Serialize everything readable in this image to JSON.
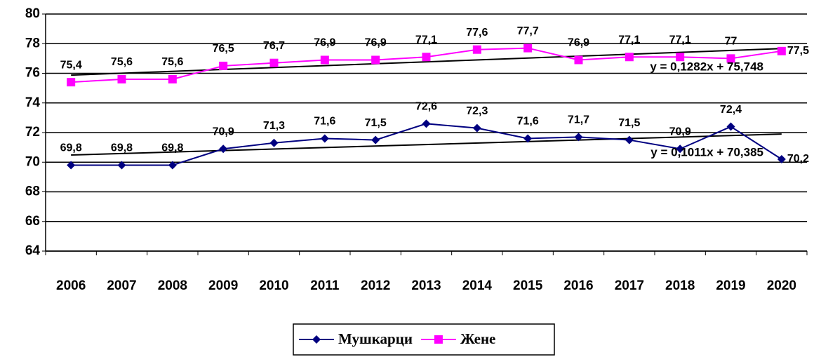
{
  "chart_data": {
    "type": "line",
    "categories": [
      "2006",
      "2007",
      "2008",
      "2009",
      "2010",
      "2011",
      "2012",
      "2013",
      "2014",
      "2015",
      "2016",
      "2017",
      "2018",
      "2019",
      "2020"
    ],
    "series": [
      {
        "name": "Мушкарци",
        "color": "#000080",
        "marker": "diamond",
        "values": [
          69.8,
          69.8,
          69.8,
          70.9,
          71.3,
          71.6,
          71.5,
          72.6,
          72.3,
          71.6,
          71.7,
          71.5,
          70.9,
          72.4,
          70.2
        ],
        "value_labels": [
          "69,8",
          "69,8",
          "69,8",
          "70,9",
          "71,3",
          "71,6",
          "71,5",
          "72,6",
          "72,3",
          "71,6",
          "71,7",
          "71,5",
          "70,9",
          "72,4",
          "70,2"
        ],
        "trendline": {
          "label": "y = 0,1011x + 70,385",
          "slope": 0.1011,
          "intercept": 70.385
        }
      },
      {
        "name": "Жене",
        "color": "#ff00ff",
        "marker": "square",
        "values": [
          75.4,
          75.6,
          75.6,
          76.5,
          76.7,
          76.9,
          76.9,
          77.1,
          77.6,
          77.7,
          76.9,
          77.1,
          77.1,
          77,
          77.5
        ],
        "value_labels": [
          "75,4",
          "75,6",
          "75,6",
          "76,5",
          "76,7",
          "76,9",
          "76,9",
          "77,1",
          "77,6",
          "77,7",
          "76,9",
          "77,1",
          "77,1",
          "77",
          "77,5"
        ],
        "trendline": {
          "label": "y = 0,1282x + 75,748",
          "slope": 0.1282,
          "intercept": 75.748
        }
      }
    ],
    "ylim": [
      64,
      80
    ],
    "yticks": [
      64,
      66,
      68,
      70,
      72,
      74,
      76,
      78,
      80
    ],
    "grid": true,
    "legend": "bottom"
  }
}
